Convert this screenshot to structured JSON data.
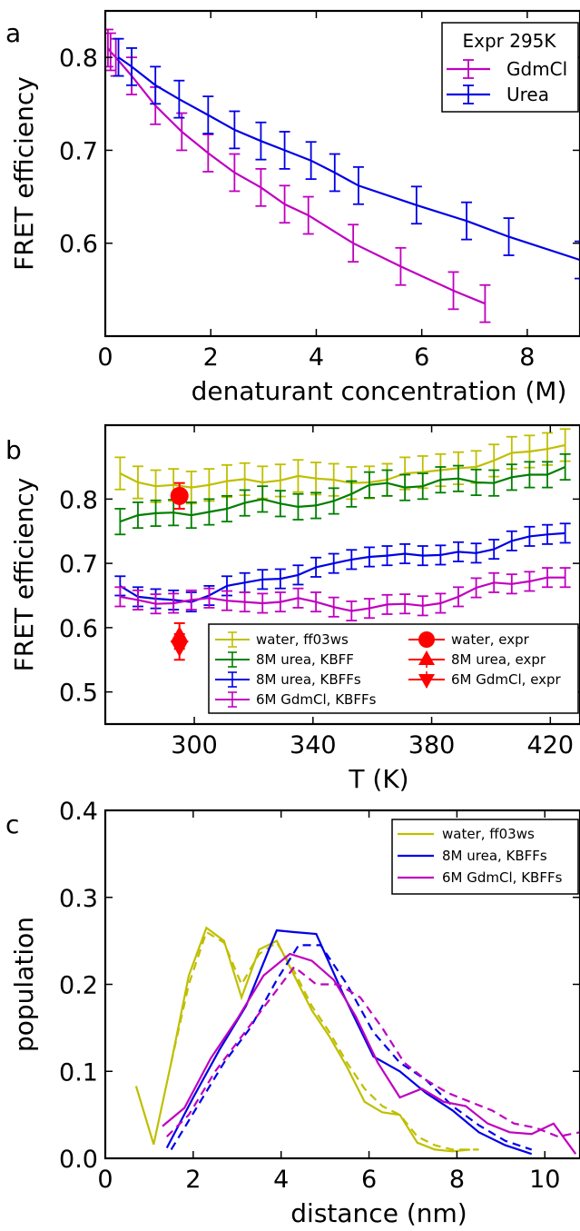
{
  "colors": {
    "magenta": "#c000c0",
    "blue": "#0000e6",
    "green": "#007f00",
    "olive": "#bfbf00",
    "red": "#ff0000"
  },
  "chart_data": [
    {
      "panel": "a",
      "type": "line",
      "xlabel": "denaturant concentration (M)",
      "ylabel": "FRET efficiency",
      "xlim": [
        0,
        9
      ],
      "ylim": [
        0.5,
        0.85
      ],
      "xticks": [
        0,
        2,
        4,
        6,
        8
      ],
      "yticks": [
        0.6,
        0.7,
        0.8
      ],
      "xtick_labels": [
        "0",
        "2",
        "4",
        "6",
        "8"
      ],
      "ytick_labels": [
        "0.6",
        "0.7",
        "0.8"
      ],
      "legend": {
        "title": "Expr 295K",
        "position": "top-right"
      },
      "series": [
        {
          "name": "GdmCl",
          "color": "#c000c0",
          "x": [
            0.05,
            0.1,
            0.2,
            0.5,
            0.95,
            1.45,
            1.95,
            2.45,
            2.95,
            3.4,
            3.85,
            4.7,
            5.6,
            6.6,
            7.2
          ],
          "y": [
            0.81,
            0.806,
            0.8,
            0.78,
            0.748,
            0.72,
            0.697,
            0.676,
            0.66,
            0.642,
            0.63,
            0.6,
            0.575,
            0.549,
            0.535
          ],
          "err": [
            0.02,
            0.02,
            0.02,
            0.02,
            0.02,
            0.02,
            0.02,
            0.02,
            0.02,
            0.02,
            0.02,
            0.02,
            0.02,
            0.02,
            0.02
          ]
        },
        {
          "name": "Urea",
          "color": "#0000e6",
          "x": [
            0.25,
            0.5,
            0.95,
            1.4,
            1.95,
            2.45,
            2.95,
            3.4,
            3.9,
            4.35,
            4.8,
            5.9,
            6.85,
            7.65,
            9.0
          ],
          "y": [
            0.8,
            0.79,
            0.77,
            0.755,
            0.738,
            0.722,
            0.71,
            0.7,
            0.689,
            0.676,
            0.662,
            0.641,
            0.624,
            0.607,
            0.582
          ],
          "err": [
            0.02,
            0.02,
            0.02,
            0.02,
            0.02,
            0.02,
            0.02,
            0.02,
            0.02,
            0.02,
            0.02,
            0.02,
            0.02,
            0.02,
            0.02
          ]
        }
      ]
    },
    {
      "panel": "b",
      "type": "line",
      "xlabel": "T (K)",
      "ylabel": "FRET efficiency",
      "xlim": [
        270,
        430
      ],
      "ylim": [
        0.45,
        0.915
      ],
      "xticks": [
        300,
        340,
        380,
        420
      ],
      "yticks": [
        0.5,
        0.6,
        0.7,
        0.8
      ],
      "xtick_labels": [
        "300",
        "340",
        "380",
        "420"
      ],
      "ytick_labels": [
        "0.5",
        "0.6",
        "0.7",
        "0.8"
      ],
      "legend": {
        "position": "bottom-right"
      },
      "series": [
        {
          "name": "water, ff03ws",
          "color": "#bfbf00",
          "x": [
            275,
            281,
            287,
            293,
            299,
            305,
            311,
            317,
            323,
            329,
            335,
            341,
            347,
            353,
            359,
            365,
            371,
            377,
            383,
            389,
            395,
            401,
            407,
            413,
            419,
            425
          ],
          "y": [
            0.84,
            0.826,
            0.82,
            0.822,
            0.818,
            0.822,
            0.828,
            0.831,
            0.826,
            0.829,
            0.836,
            0.832,
            0.83,
            0.825,
            0.826,
            0.83,
            0.84,
            0.842,
            0.845,
            0.848,
            0.85,
            0.86,
            0.872,
            0.874,
            0.878,
            0.884
          ],
          "err": [
            0.025,
            0.025,
            0.025,
            0.025,
            0.025,
            0.025,
            0.025,
            0.025,
            0.025,
            0.025,
            0.025,
            0.025,
            0.025,
            0.025,
            0.025,
            0.025,
            0.025,
            0.025,
            0.025,
            0.025,
            0.025,
            0.025,
            0.025,
            0.025,
            0.025,
            0.025
          ]
        },
        {
          "name": "8M urea, KBFF",
          "color": "#007f00",
          "x": [
            275,
            281,
            287,
            293,
            299,
            305,
            311,
            317,
            323,
            329,
            335,
            341,
            347,
            353,
            359,
            365,
            371,
            377,
            383,
            389,
            395,
            401,
            407,
            413,
            419,
            425
          ],
          "y": [
            0.765,
            0.775,
            0.778,
            0.779,
            0.775,
            0.78,
            0.785,
            0.794,
            0.8,
            0.793,
            0.788,
            0.79,
            0.797,
            0.808,
            0.822,
            0.825,
            0.818,
            0.82,
            0.83,
            0.832,
            0.826,
            0.825,
            0.834,
            0.838,
            0.838,
            0.85
          ],
          "err": [
            0.02,
            0.02,
            0.02,
            0.02,
            0.02,
            0.02,
            0.02,
            0.02,
            0.02,
            0.02,
            0.02,
            0.02,
            0.02,
            0.02,
            0.02,
            0.02,
            0.02,
            0.02,
            0.02,
            0.02,
            0.02,
            0.02,
            0.02,
            0.02,
            0.02,
            0.02
          ]
        },
        {
          "name": "8M urea, KBFFs",
          "color": "#0000e6",
          "x": [
            275,
            281,
            287,
            293,
            299,
            305,
            311,
            317,
            323,
            329,
            335,
            341,
            347,
            353,
            359,
            365,
            371,
            377,
            383,
            389,
            395,
            401,
            407,
            413,
            419,
            425
          ],
          "y": [
            0.665,
            0.648,
            0.645,
            0.643,
            0.64,
            0.65,
            0.665,
            0.67,
            0.675,
            0.676,
            0.682,
            0.694,
            0.7,
            0.706,
            0.71,
            0.712,
            0.715,
            0.712,
            0.713,
            0.718,
            0.716,
            0.722,
            0.735,
            0.742,
            0.745,
            0.747
          ],
          "err": [
            0.015,
            0.015,
            0.015,
            0.015,
            0.015,
            0.015,
            0.015,
            0.015,
            0.015,
            0.015,
            0.015,
            0.015,
            0.015,
            0.015,
            0.015,
            0.015,
            0.015,
            0.015,
            0.015,
            0.015,
            0.015,
            0.015,
            0.015,
            0.015,
            0.015,
            0.015
          ]
        },
        {
          "name": "6M GdmCl, KBFFs",
          "color": "#c000c0",
          "x": [
            275,
            281,
            287,
            293,
            299,
            305,
            311,
            317,
            323,
            329,
            335,
            341,
            347,
            353,
            359,
            365,
            371,
            377,
            383,
            389,
            395,
            401,
            407,
            413,
            419,
            425
          ],
          "y": [
            0.648,
            0.643,
            0.637,
            0.638,
            0.643,
            0.646,
            0.642,
            0.64,
            0.638,
            0.64,
            0.646,
            0.64,
            0.632,
            0.626,
            0.63,
            0.636,
            0.637,
            0.634,
            0.638,
            0.648,
            0.662,
            0.67,
            0.668,
            0.672,
            0.678,
            0.678
          ],
          "err": [
            0.015,
            0.015,
            0.015,
            0.015,
            0.015,
            0.015,
            0.015,
            0.015,
            0.015,
            0.015,
            0.015,
            0.015,
            0.015,
            0.015,
            0.015,
            0.015,
            0.015,
            0.015,
            0.015,
            0.015,
            0.015,
            0.015,
            0.015,
            0.015,
            0.015,
            0.015
          ]
        }
      ],
      "points": [
        {
          "name": "water, expr",
          "color": "#ff0000",
          "marker": "circle",
          "x": 295,
          "y": 0.805,
          "err": 0.02
        },
        {
          "name": "8M urea, expr",
          "color": "#ff0000",
          "marker": "triangle-up",
          "x": 295,
          "y": 0.587,
          "err": 0.02
        },
        {
          "name": "6M GdmCl, expr",
          "color": "#ff0000",
          "marker": "triangle-down",
          "x": 295,
          "y": 0.57,
          "err": 0.02
        }
      ]
    },
    {
      "panel": "c",
      "type": "line",
      "xlabel": "distance (nm)",
      "ylabel": "population",
      "xlim": [
        0,
        10.8
      ],
      "ylim": [
        0,
        0.4
      ],
      "xticks": [
        0,
        2,
        4,
        6,
        8,
        10
      ],
      "yticks": [
        0.0,
        0.1,
        0.2,
        0.3,
        0.4
      ],
      "xtick_labels": [
        "0",
        "2",
        "4",
        "6",
        "8",
        "10"
      ],
      "ytick_labels": [
        "0.0",
        "0.1",
        "0.2",
        "0.3",
        "0.4"
      ],
      "legend": {
        "position": "top-right"
      },
      "series": [
        {
          "name": "water, ff03ws",
          "color": "#bfbf00",
          "x": [
            0.7,
            1.1,
            1.5,
            1.9,
            2.3,
            2.7,
            3.1,
            3.5,
            3.9,
            4.3,
            4.7,
            5.1,
            5.5,
            5.9,
            6.3,
            6.7,
            7.1,
            7.5,
            7.9,
            8.3
          ],
          "y": [
            0.083,
            0.016,
            0.11,
            0.21,
            0.265,
            0.25,
            0.185,
            0.24,
            0.25,
            0.21,
            0.17,
            0.14,
            0.105,
            0.065,
            0.053,
            0.05,
            0.018,
            0.01,
            0.008,
            0.01
          ]
        },
        {
          "name": "water, ff03ws (dashed)",
          "color": "#bfbf00",
          "dashed": true,
          "x": [
            1.5,
            1.9,
            2.3,
            2.7,
            3.1,
            3.5,
            3.9,
            4.3,
            4.7,
            5.1,
            5.5,
            5.9,
            6.3,
            6.7,
            7.1,
            7.5,
            7.9,
            8.5
          ],
          "y": [
            0.11,
            0.2,
            0.26,
            0.248,
            0.2,
            0.235,
            0.248,
            0.215,
            0.175,
            0.145,
            0.11,
            0.08,
            0.06,
            0.05,
            0.025,
            0.015,
            0.01,
            0.01
          ]
        },
        {
          "name": "8M urea, KBFFs",
          "color": "#0000e6",
          "x": [
            1.4,
            2.0,
            2.6,
            3.2,
            3.9,
            4.3,
            4.8,
            5.4,
            6.1,
            6.7,
            7.3,
            7.9,
            8.5,
            9.1,
            9.7
          ],
          "y": [
            0.012,
            0.07,
            0.125,
            0.175,
            0.262,
            0.26,
            0.258,
            0.19,
            0.117,
            0.1,
            0.075,
            0.055,
            0.03,
            0.015,
            0.005
          ]
        },
        {
          "name": "8M urea, KBFFs (dashed)",
          "color": "#0000e6",
          "dashed": true,
          "x": [
            1.5,
            2.1,
            2.7,
            3.3,
            3.9,
            4.4,
            4.9,
            5.5,
            6.1,
            6.7,
            7.3,
            7.9,
            8.5,
            9.1,
            9.7
          ],
          "y": [
            0.01,
            0.06,
            0.11,
            0.15,
            0.205,
            0.245,
            0.245,
            0.2,
            0.145,
            0.11,
            0.09,
            0.06,
            0.038,
            0.02,
            0.01
          ]
        },
        {
          "name": "6M GdmCl, KBFFs",
          "color": "#c000c0",
          "x": [
            1.3,
            1.8,
            2.4,
            3.0,
            3.6,
            4.2,
            4.7,
            5.2,
            5.7,
            6.2,
            6.7,
            7.2,
            7.7,
            8.2,
            8.7,
            9.2,
            9.7,
            10.2,
            10.7
          ],
          "y": [
            0.037,
            0.058,
            0.115,
            0.16,
            0.21,
            0.235,
            0.227,
            0.205,
            0.163,
            0.11,
            0.07,
            0.08,
            0.065,
            0.06,
            0.04,
            0.03,
            0.028,
            0.04,
            0.005
          ]
        },
        {
          "name": "6M GdmCl, KBFFs (dashed)",
          "color": "#c000c0",
          "dashed": true,
          "x": [
            1.4,
            1.9,
            2.5,
            3.1,
            3.7,
            4.3,
            4.8,
            5.3,
            5.8,
            6.3,
            6.8,
            7.3,
            7.8,
            8.3,
            8.8,
            9.3,
            9.8,
            10.3,
            10.8
          ],
          "y": [
            0.025,
            0.05,
            0.1,
            0.14,
            0.18,
            0.22,
            0.2,
            0.2,
            0.185,
            0.15,
            0.11,
            0.09,
            0.075,
            0.065,
            0.055,
            0.04,
            0.035,
            0.025,
            0.03
          ]
        }
      ],
      "legend_entries": [
        {
          "name": "water, ff03ws",
          "color": "#bfbf00"
        },
        {
          "name": "8M urea, KBFFs",
          "color": "#0000e6"
        },
        {
          "name": "6M GdmCl, KBFFs",
          "color": "#c000c0"
        }
      ]
    }
  ]
}
